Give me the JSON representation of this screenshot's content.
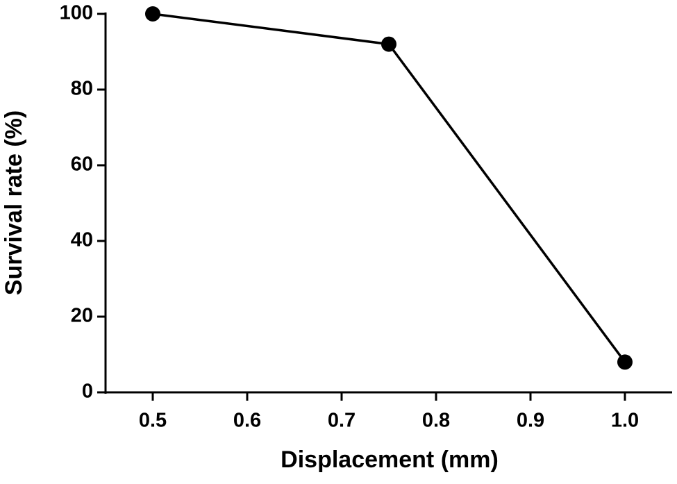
{
  "chart_data": {
    "type": "line",
    "xlabel": "Displacement (mm)",
    "ylabel": "Survival rate (%)",
    "x": [
      0.5,
      0.75,
      1.0
    ],
    "values": [
      100,
      92,
      8
    ],
    "color": "#000000",
    "xlim": [
      0.45,
      1.05
    ],
    "xticks": [
      0.5,
      0.6,
      0.7,
      0.8,
      0.9,
      {
        "value": 1.0,
        "label": "1.0"
      }
    ],
    "ylim": [
      0,
      100
    ],
    "yticks": [
      0,
      20,
      40,
      60,
      80,
      100
    ],
    "grid": false
  }
}
